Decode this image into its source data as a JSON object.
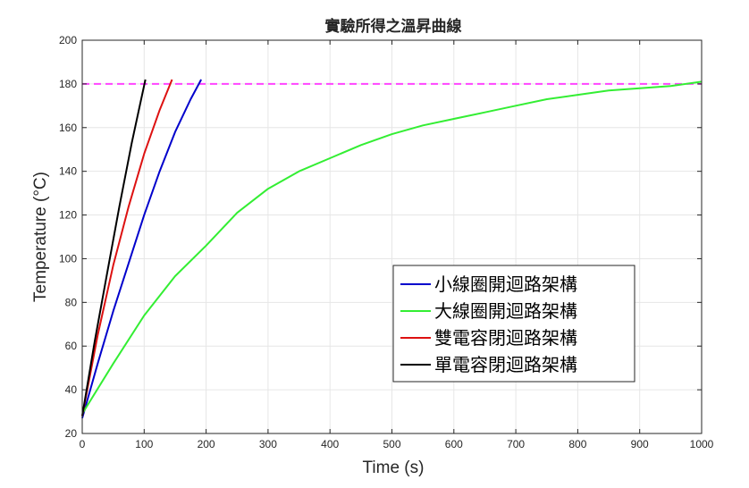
{
  "chart_data": {
    "type": "line",
    "title": "實驗所得之溫昇曲線",
    "xlabel": "Time (s)",
    "ylabel": "Temperature (°C)",
    "xlim": [
      0,
      1000
    ],
    "ylim": [
      20,
      200
    ],
    "xticks": [
      0,
      100,
      200,
      300,
      400,
      500,
      600,
      700,
      800,
      900,
      1000
    ],
    "yticks": [
      20,
      40,
      60,
      80,
      100,
      120,
      140,
      160,
      180,
      200
    ],
    "grid": true,
    "legend_position": "center-right",
    "reference_line": {
      "y": 180,
      "style": "dashed",
      "color": "#ff44ff"
    },
    "series": [
      {
        "name": "小線圈開迴路架構",
        "color": "#0000cc",
        "x": [
          0,
          25,
          50,
          75,
          100,
          125,
          150,
          175,
          192
        ],
        "y": [
          27,
          52,
          76,
          98,
          120,
          140,
          158,
          173,
          182
        ]
      },
      {
        "name": "大線圈開迴路架構",
        "color": "#33ee33",
        "x": [
          0,
          50,
          100,
          150,
          200,
          250,
          300,
          350,
          400,
          450,
          500,
          550,
          600,
          650,
          700,
          750,
          800,
          850,
          900,
          950,
          1000
        ],
        "y": [
          29,
          52,
          74,
          92,
          106,
          121,
          132,
          140,
          146,
          152,
          157,
          161,
          164,
          167,
          170,
          173,
          175,
          177,
          178,
          179,
          181
        ]
      },
      {
        "name": "雙電容閉迴路架構",
        "color": "#dd1111",
        "x": [
          0,
          25,
          50,
          75,
          100,
          125,
          145
        ],
        "y": [
          28,
          65,
          97,
          124,
          148,
          168,
          182
        ]
      },
      {
        "name": "單電容閉迴路架構",
        "color": "#000000",
        "x": [
          0,
          20,
          40,
          60,
          80,
          102
        ],
        "y": [
          28,
          62,
          93,
          124,
          153,
          182
        ]
      }
    ]
  }
}
